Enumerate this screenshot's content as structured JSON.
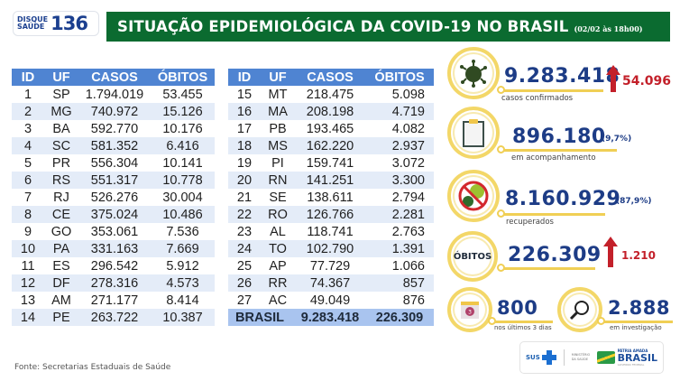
{
  "header": {
    "hotline_small_1": "DISQUE",
    "hotline_small_2": "SAÚDE",
    "hotline_number": "136",
    "title": "SITUAÇÃO EPIDEMIOLÓGICA DA COVID-19 NO BRASIL",
    "date": "(02/02 às 18h00)",
    "title_bg_color": "#0b6b30"
  },
  "table": {
    "headers": [
      "ID",
      "UF",
      "CASOS",
      "ÓBITOS"
    ],
    "left_rows": [
      [
        "1",
        "SP",
        "1.794.019",
        "53.455"
      ],
      [
        "2",
        "MG",
        "740.972",
        "15.126"
      ],
      [
        "3",
        "BA",
        "592.770",
        "10.176"
      ],
      [
        "4",
        "SC",
        "581.352",
        "6.416"
      ],
      [
        "5",
        "PR",
        "556.304",
        "10.141"
      ],
      [
        "6",
        "RS",
        "551.317",
        "10.778"
      ],
      [
        "7",
        "RJ",
        "526.276",
        "30.004"
      ],
      [
        "8",
        "CE",
        "375.024",
        "10.486"
      ],
      [
        "9",
        "GO",
        "353.061",
        "7.536"
      ],
      [
        "10",
        "PA",
        "331.163",
        "7.669"
      ],
      [
        "11",
        "ES",
        "296.542",
        "5.912"
      ],
      [
        "12",
        "DF",
        "278.316",
        "4.573"
      ],
      [
        "13",
        "AM",
        "271.177",
        "8.414"
      ],
      [
        "14",
        "PE",
        "263.722",
        "10.387"
      ]
    ],
    "right_rows": [
      [
        "15",
        "MT",
        "218.475",
        "5.098"
      ],
      [
        "16",
        "MA",
        "208.198",
        "4.719"
      ],
      [
        "17",
        "PB",
        "193.465",
        "4.082"
      ],
      [
        "18",
        "MS",
        "162.220",
        "2.937"
      ],
      [
        "19",
        "PI",
        "159.741",
        "3.072"
      ],
      [
        "20",
        "RN",
        "141.251",
        "3.300"
      ],
      [
        "21",
        "SE",
        "138.611",
        "2.794"
      ],
      [
        "22",
        "RO",
        "126.766",
        "2.281"
      ],
      [
        "23",
        "AL",
        "118.741",
        "2.763"
      ],
      [
        "24",
        "TO",
        "102.790",
        "1.391"
      ],
      [
        "25",
        "AP",
        "77.729",
        "1.066"
      ],
      [
        "26",
        "RR",
        "74.367",
        "857"
      ],
      [
        "27",
        "AC",
        "49.049",
        "876"
      ]
    ],
    "total": {
      "label": "BRASIL",
      "casos": "9.283.418",
      "obitos": "226.309"
    },
    "header_color": "#4f84d2",
    "alt_row_color": "#e4ecf8",
    "total_row_color": "#a9c4ef"
  },
  "stats": {
    "confirmed": {
      "icon": "virus-icon",
      "value": "9.283.418",
      "delta": "54.096",
      "caption": "casos confirmados"
    },
    "monitoring": {
      "icon": "clipboard-icon",
      "value": "896.180",
      "pct": "(9,7%)",
      "caption": "em acompanhamento"
    },
    "recovered": {
      "icon": "no-virus-icon",
      "value": "8.160.929",
      "pct": "(87,9%)",
      "caption": "recuperados"
    },
    "deaths": {
      "badge": "ÓBITOS",
      "value": "226.309",
      "delta": "1.210"
    },
    "recent_deaths": {
      "icon": "calendar-icon",
      "calendar_day": "3",
      "value": "800",
      "caption": "nos últimos 3 dias"
    },
    "investigating": {
      "icon": "magnifier-icon",
      "value": "2.888",
      "caption": "em investigação"
    },
    "number_color": "#1d3c86",
    "delta_color": "#c3202a",
    "ring_color": "#f3d768"
  },
  "footer": {
    "source": "Fonte: Secretarias Estaduais de Saúde",
    "logos": {
      "sus": "SUS",
      "ministry": "MINISTÉRIO DA SAÚDE",
      "patria": "PÁTRIA AMADA",
      "brasil": "BRASIL",
      "gov": "GOVERNO FEDERAL"
    }
  }
}
